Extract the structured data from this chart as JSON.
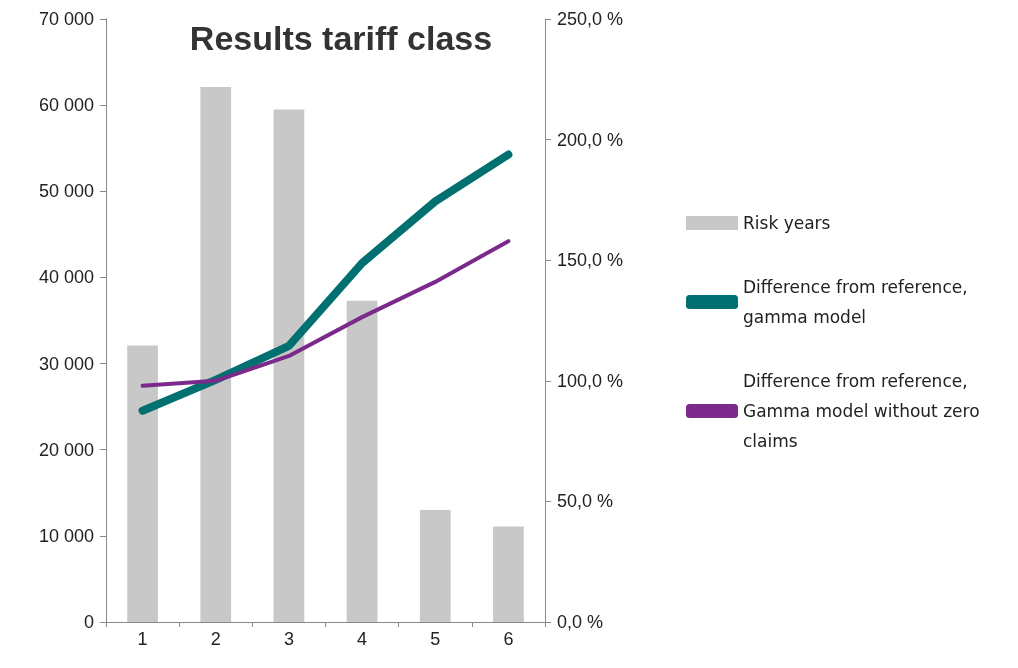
{
  "chart_data": {
    "type": "bar",
    "title": "Results tariff class",
    "categories": [
      "1",
      "2",
      "3",
      "4",
      "5",
      "6"
    ],
    "series": [
      {
        "name": "Risk years",
        "color": "#c8c8c8",
        "values": [
          32100,
          62100,
          59500,
          37300,
          13000,
          11100
        ]
      },
      {
        "name": "Difference from reference, gamma model",
        "type": "line",
        "axis": "y2",
        "color": "#007070",
        "values": [
          87.6,
          100.4,
          114.5,
          148.8,
          174.4,
          193.8
        ]
      },
      {
        "name": "Difference from reference, Gamma model without zero claims",
        "type": "line",
        "axis": "y2",
        "color": "#7b2a8c",
        "values": [
          97.9,
          100,
          110.3,
          126.4,
          141,
          157.9
        ]
      }
    ],
    "ylim": [
      0,
      70000
    ],
    "yticks": [
      {
        "value": 0,
        "label": "0"
      },
      {
        "value": 10000,
        "label": "10 000"
      },
      {
        "value": 20000,
        "label": "20 000"
      },
      {
        "value": 30000,
        "label": "30 000"
      },
      {
        "value": 40000,
        "label": "40 000"
      },
      {
        "value": 50000,
        "label": "50 000"
      },
      {
        "value": 60000,
        "label": "60 000"
      },
      {
        "value": 70000,
        "label": "70 000"
      }
    ],
    "y2lim": [
      0,
      250
    ],
    "y2ticks": [
      {
        "value": 0,
        "label": "0,0 %"
      },
      {
        "value": 50,
        "label": "50,0 %"
      },
      {
        "value": 100,
        "label": "100,0 %"
      },
      {
        "value": 150,
        "label": "150,0 %"
      },
      {
        "value": 200,
        "label": "200,0 %"
      },
      {
        "value": 250,
        "label": "250,0 %"
      }
    ],
    "grid": false,
    "legend": "right",
    "marker": "none",
    "line_style": "solid"
  }
}
